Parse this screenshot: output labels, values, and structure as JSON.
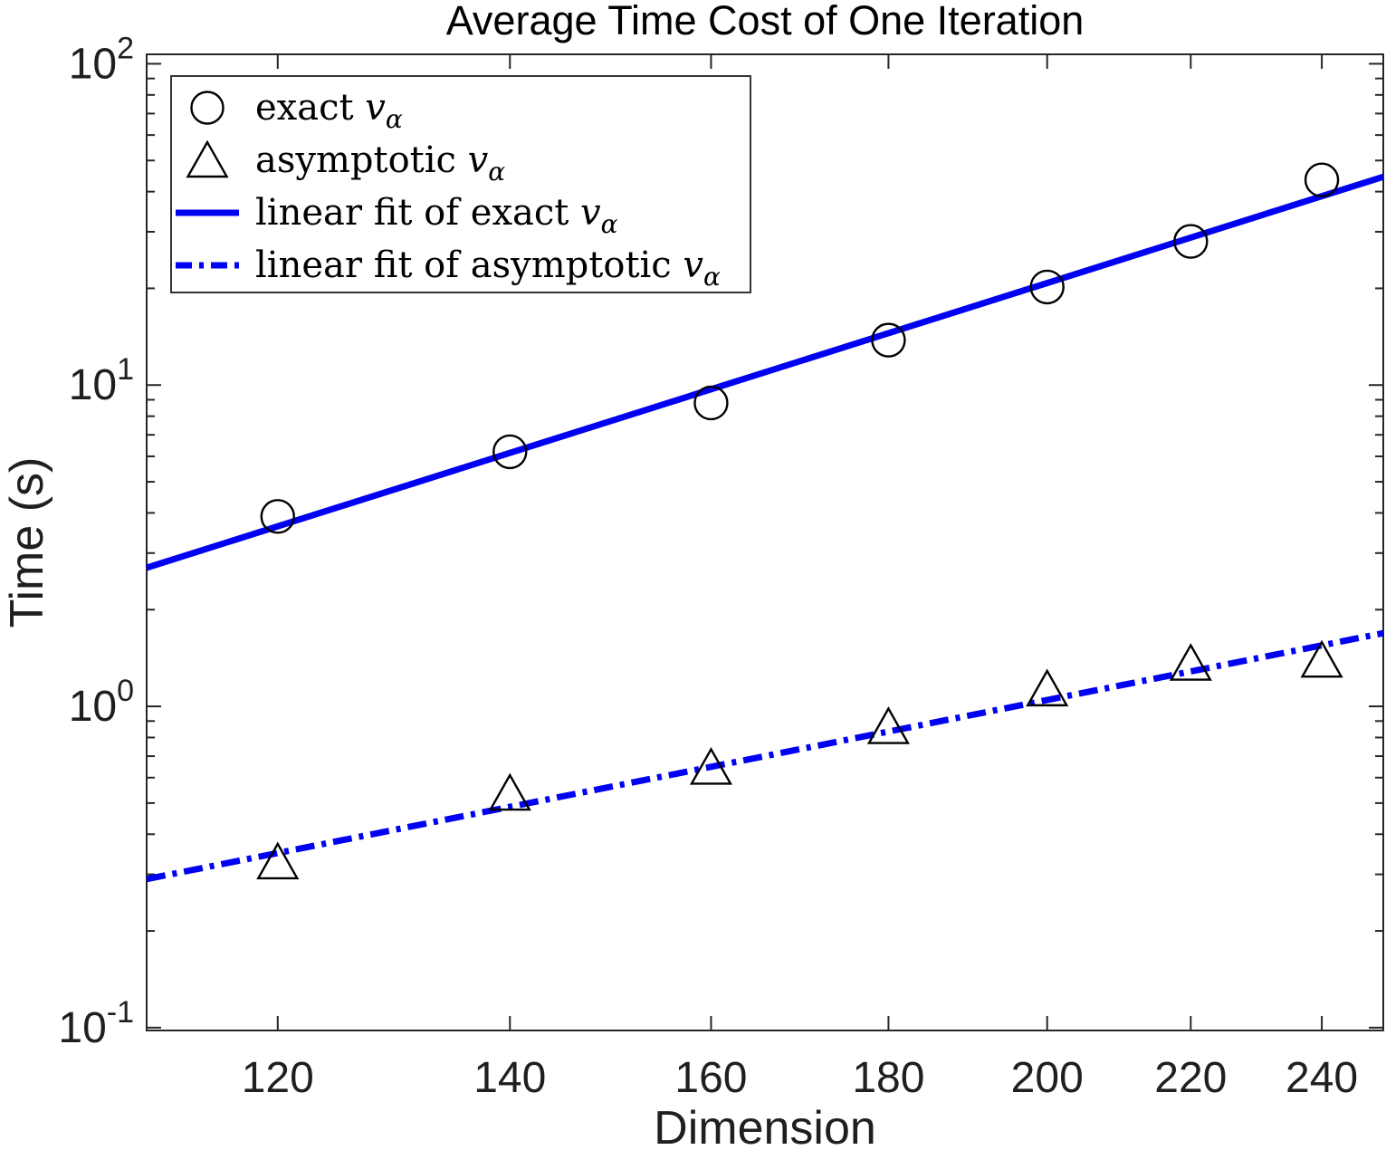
{
  "title": "Average Time Cost of One Iteration",
  "axes": {
    "xlabel": "Dimension",
    "ylabel": "Time (s)"
  },
  "colors": {
    "fit_line": "#0000f2",
    "marker_edge": "#000000",
    "axis": "#262626",
    "tick_label": "#1f1f1f",
    "background": "#ffffff"
  },
  "legend": {
    "position": "top-left",
    "items": [
      {
        "symbol": "circle-marker",
        "prefix": "exact ",
        "variable": "v",
        "subscript": "α"
      },
      {
        "symbol": "triangle-marker",
        "prefix": "asymptotic ",
        "variable": "v",
        "subscript": "α"
      },
      {
        "symbol": "solid-line",
        "prefix": "linear fit of exact ",
        "variable": "v",
        "subscript": "α"
      },
      {
        "symbol": "dashdot-line",
        "prefix": "linear fit of asymptotic ",
        "variable": "v",
        "subscript": "α"
      }
    ]
  },
  "chart_data": {
    "type": "scatter",
    "title": "Average Time Cost of One Iteration",
    "xlabel": "Dimension",
    "ylabel": "Time (s)",
    "x_scale": "log",
    "y_scale": "log",
    "xlim": [
      110,
      250
    ],
    "ylim": [
      0.098,
      107
    ],
    "grid": false,
    "legend_position": "top-left",
    "x_ticks": [
      120,
      140,
      160,
      180,
      200,
      220,
      240
    ],
    "y_ticks": [
      {
        "value": 100,
        "base": "10",
        "exponent": "2"
      },
      {
        "value": 10,
        "base": "10",
        "exponent": "1"
      },
      {
        "value": 1,
        "base": "10",
        "exponent": "0"
      },
      {
        "value": 0.1,
        "base": "10",
        "exponent": "-1"
      }
    ],
    "y_minor_ticks": [
      0.2,
      0.3,
      0.4,
      0.5,
      0.6,
      0.7,
      0.8,
      0.9,
      2,
      3,
      4,
      5,
      6,
      7,
      8,
      9,
      20,
      30,
      40,
      50,
      60,
      70,
      80,
      90
    ],
    "series": [
      {
        "name": "exact v_alpha",
        "kind": "markers",
        "marker": "circle",
        "x": [
          120,
          140,
          160,
          180,
          200,
          220,
          240
        ],
        "y": [
          3.9,
          6.2,
          8.8,
          13.8,
          20.2,
          28.0,
          43.5
        ]
      },
      {
        "name": "asymptotic v_alpha",
        "kind": "markers",
        "marker": "triangle",
        "x": [
          120,
          140,
          160,
          180,
          200,
          220,
          240
        ],
        "y": [
          0.33,
          0.54,
          0.65,
          0.87,
          1.14,
          1.37,
          1.4
        ]
      },
      {
        "name": "linear fit of exact v_alpha",
        "kind": "line",
        "style": "solid",
        "x": [
          110,
          250
        ],
        "y": [
          2.7,
          44.5
        ]
      },
      {
        "name": "linear fit of asymptotic v_alpha",
        "kind": "line",
        "style": "dashdot",
        "x": [
          110,
          250
        ],
        "y": [
          0.29,
          1.69
        ]
      }
    ]
  }
}
